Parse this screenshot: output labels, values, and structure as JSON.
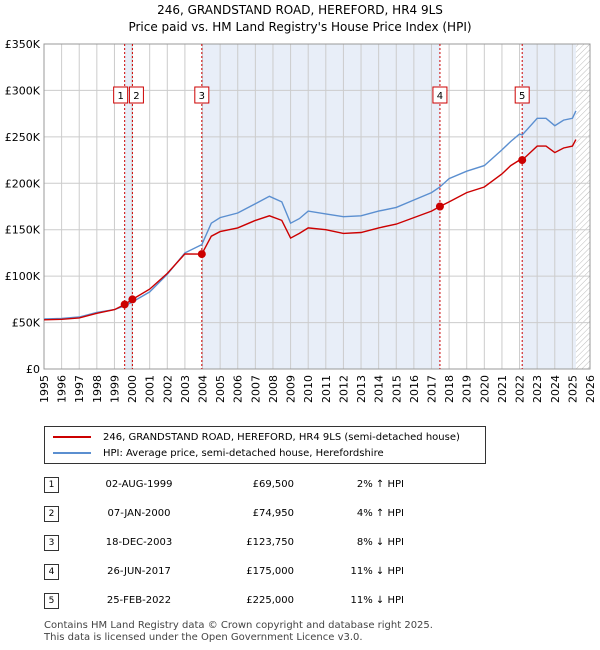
{
  "title_line1": "246, GRANDSTAND ROAD, HEREFORD, HR4 9LS",
  "title_line2": "Price paid vs. HM Land Registry's House Price Index (HPI)",
  "colors": {
    "property": "#cc0000",
    "hpi": "#5b8fd0",
    "shade": "#e8eef8",
    "marker_line": "#cc0000",
    "grid": "#cccccc"
  },
  "legend": {
    "property": "246, GRANDSTAND ROAD, HEREFORD, HR4 9LS (semi-detached house)",
    "hpi": "HPI: Average price, semi-detached house, Herefordshire"
  },
  "sales": [
    {
      "num": "1",
      "date": "02-AUG-1999",
      "price": "£69,500",
      "hpi": "2% ↑ HPI"
    },
    {
      "num": "2",
      "date": "07-JAN-2000",
      "price": "£74,950",
      "hpi": "4% ↑ HPI"
    },
    {
      "num": "3",
      "date": "18-DEC-2003",
      "price": "£123,750",
      "hpi": "8% ↓ HPI"
    },
    {
      "num": "4",
      "date": "26-JUN-2017",
      "price": "£175,000",
      "hpi": "11% ↓ HPI"
    },
    {
      "num": "5",
      "date": "25-FEB-2022",
      "price": "£225,000",
      "hpi": "11% ↓ HPI"
    }
  ],
  "footer_line1": "Contains HM Land Registry data © Crown copyright and database right 2025.",
  "footer_line2": "This data is licensed under the Open Government Licence v3.0.",
  "chart_data": {
    "type": "line",
    "title": "246, GRANDSTAND ROAD, HEREFORD, HR4 9LS — Price paid vs. HM Land Registry's House Price Index (HPI)",
    "xlabel": "",
    "ylabel": "",
    "xlim": [
      1995,
      2026
    ],
    "ylim": [
      0,
      350000
    ],
    "x_ticks": [
      1995,
      1996,
      1997,
      1998,
      1999,
      2000,
      2001,
      2002,
      2003,
      2004,
      2005,
      2006,
      2007,
      2008,
      2009,
      2010,
      2011,
      2012,
      2013,
      2014,
      2015,
      2016,
      2017,
      2018,
      2019,
      2020,
      2021,
      2022,
      2023,
      2024,
      2025,
      2026
    ],
    "y_ticks": [
      0,
      50000,
      100000,
      150000,
      200000,
      250000,
      300000,
      350000
    ],
    "y_tick_labels": [
      "£0",
      "£50K",
      "£100K",
      "£150K",
      "£200K",
      "£250K",
      "£300K",
      "£350K"
    ],
    "grid": true,
    "shaded_periods": [
      [
        1999.58,
        2000.02
      ],
      [
        2003.96,
        2017.48
      ],
      [
        2022.15,
        2025.2
      ]
    ],
    "future_hatch_from": 2025.2,
    "markers": [
      {
        "label": "1",
        "x": 1999.58,
        "y": 69500
      },
      {
        "label": "2",
        "x": 2000.02,
        "y": 74950
      },
      {
        "label": "3",
        "x": 2003.96,
        "y": 123750
      },
      {
        "label": "4",
        "x": 2017.48,
        "y": 175000
      },
      {
        "label": "5",
        "x": 2022.15,
        "y": 225000
      }
    ],
    "series": [
      {
        "name": "HPI: Average price, semi-detached house, Herefordshire",
        "x": [
          1995,
          1996,
          1997,
          1998,
          1999,
          1999.58,
          2000,
          2001,
          2002,
          2003,
          2003.96,
          2004.5,
          2005,
          2006,
          2007,
          2007.8,
          2008.5,
          2009,
          2009.5,
          2010,
          2011,
          2012,
          2013,
          2014,
          2015,
          2016,
          2017,
          2017.48,
          2018,
          2019,
          2020,
          2021,
          2021.5,
          2022,
          2022.15,
          2023,
          2023.5,
          2024,
          2024.5,
          2025,
          2025.2
        ],
        "values": [
          54000,
          54500,
          56000,
          61000,
          64000,
          68000,
          72000,
          83000,
          102000,
          125000,
          134000,
          157000,
          163000,
          168000,
          178000,
          186000,
          180000,
          157000,
          162000,
          170000,
          167000,
          164000,
          165000,
          170000,
          174000,
          182000,
          190000,
          196000,
          205000,
          213000,
          219000,
          236000,
          245000,
          253000,
          252000,
          270000,
          270000,
          262000,
          268000,
          270000,
          278000
        ]
      },
      {
        "name": "246, GRANDSTAND ROAD, HEREFORD, HR4 9LS (semi-detached house)",
        "x": [
          1995,
          1996,
          1997,
          1998,
          1999,
          1999.58,
          2000.02,
          2001,
          2002,
          2003,
          2003.96,
          2004.5,
          2005,
          2006,
          2007,
          2007.8,
          2008.5,
          2009,
          2009.5,
          2010,
          2011,
          2012,
          2013,
          2014,
          2015,
          2016,
          2017,
          2017.48,
          2018,
          2019,
          2020,
          2021,
          2021.5,
          2022,
          2022.15,
          2023,
          2023.5,
          2024,
          2024.5,
          2025,
          2025.2
        ],
        "values": [
          53000,
          53500,
          55000,
          60000,
          64000,
          69500,
          74950,
          86000,
          103000,
          124000,
          123750,
          143000,
          148000,
          152000,
          160000,
          165000,
          160000,
          141000,
          146000,
          152000,
          150000,
          146000,
          147000,
          152000,
          156000,
          163000,
          170000,
          175000,
          180000,
          190000,
          196000,
          210000,
          219000,
          225000,
          225000,
          240000,
          240000,
          233000,
          238000,
          240000,
          247000
        ]
      }
    ]
  }
}
